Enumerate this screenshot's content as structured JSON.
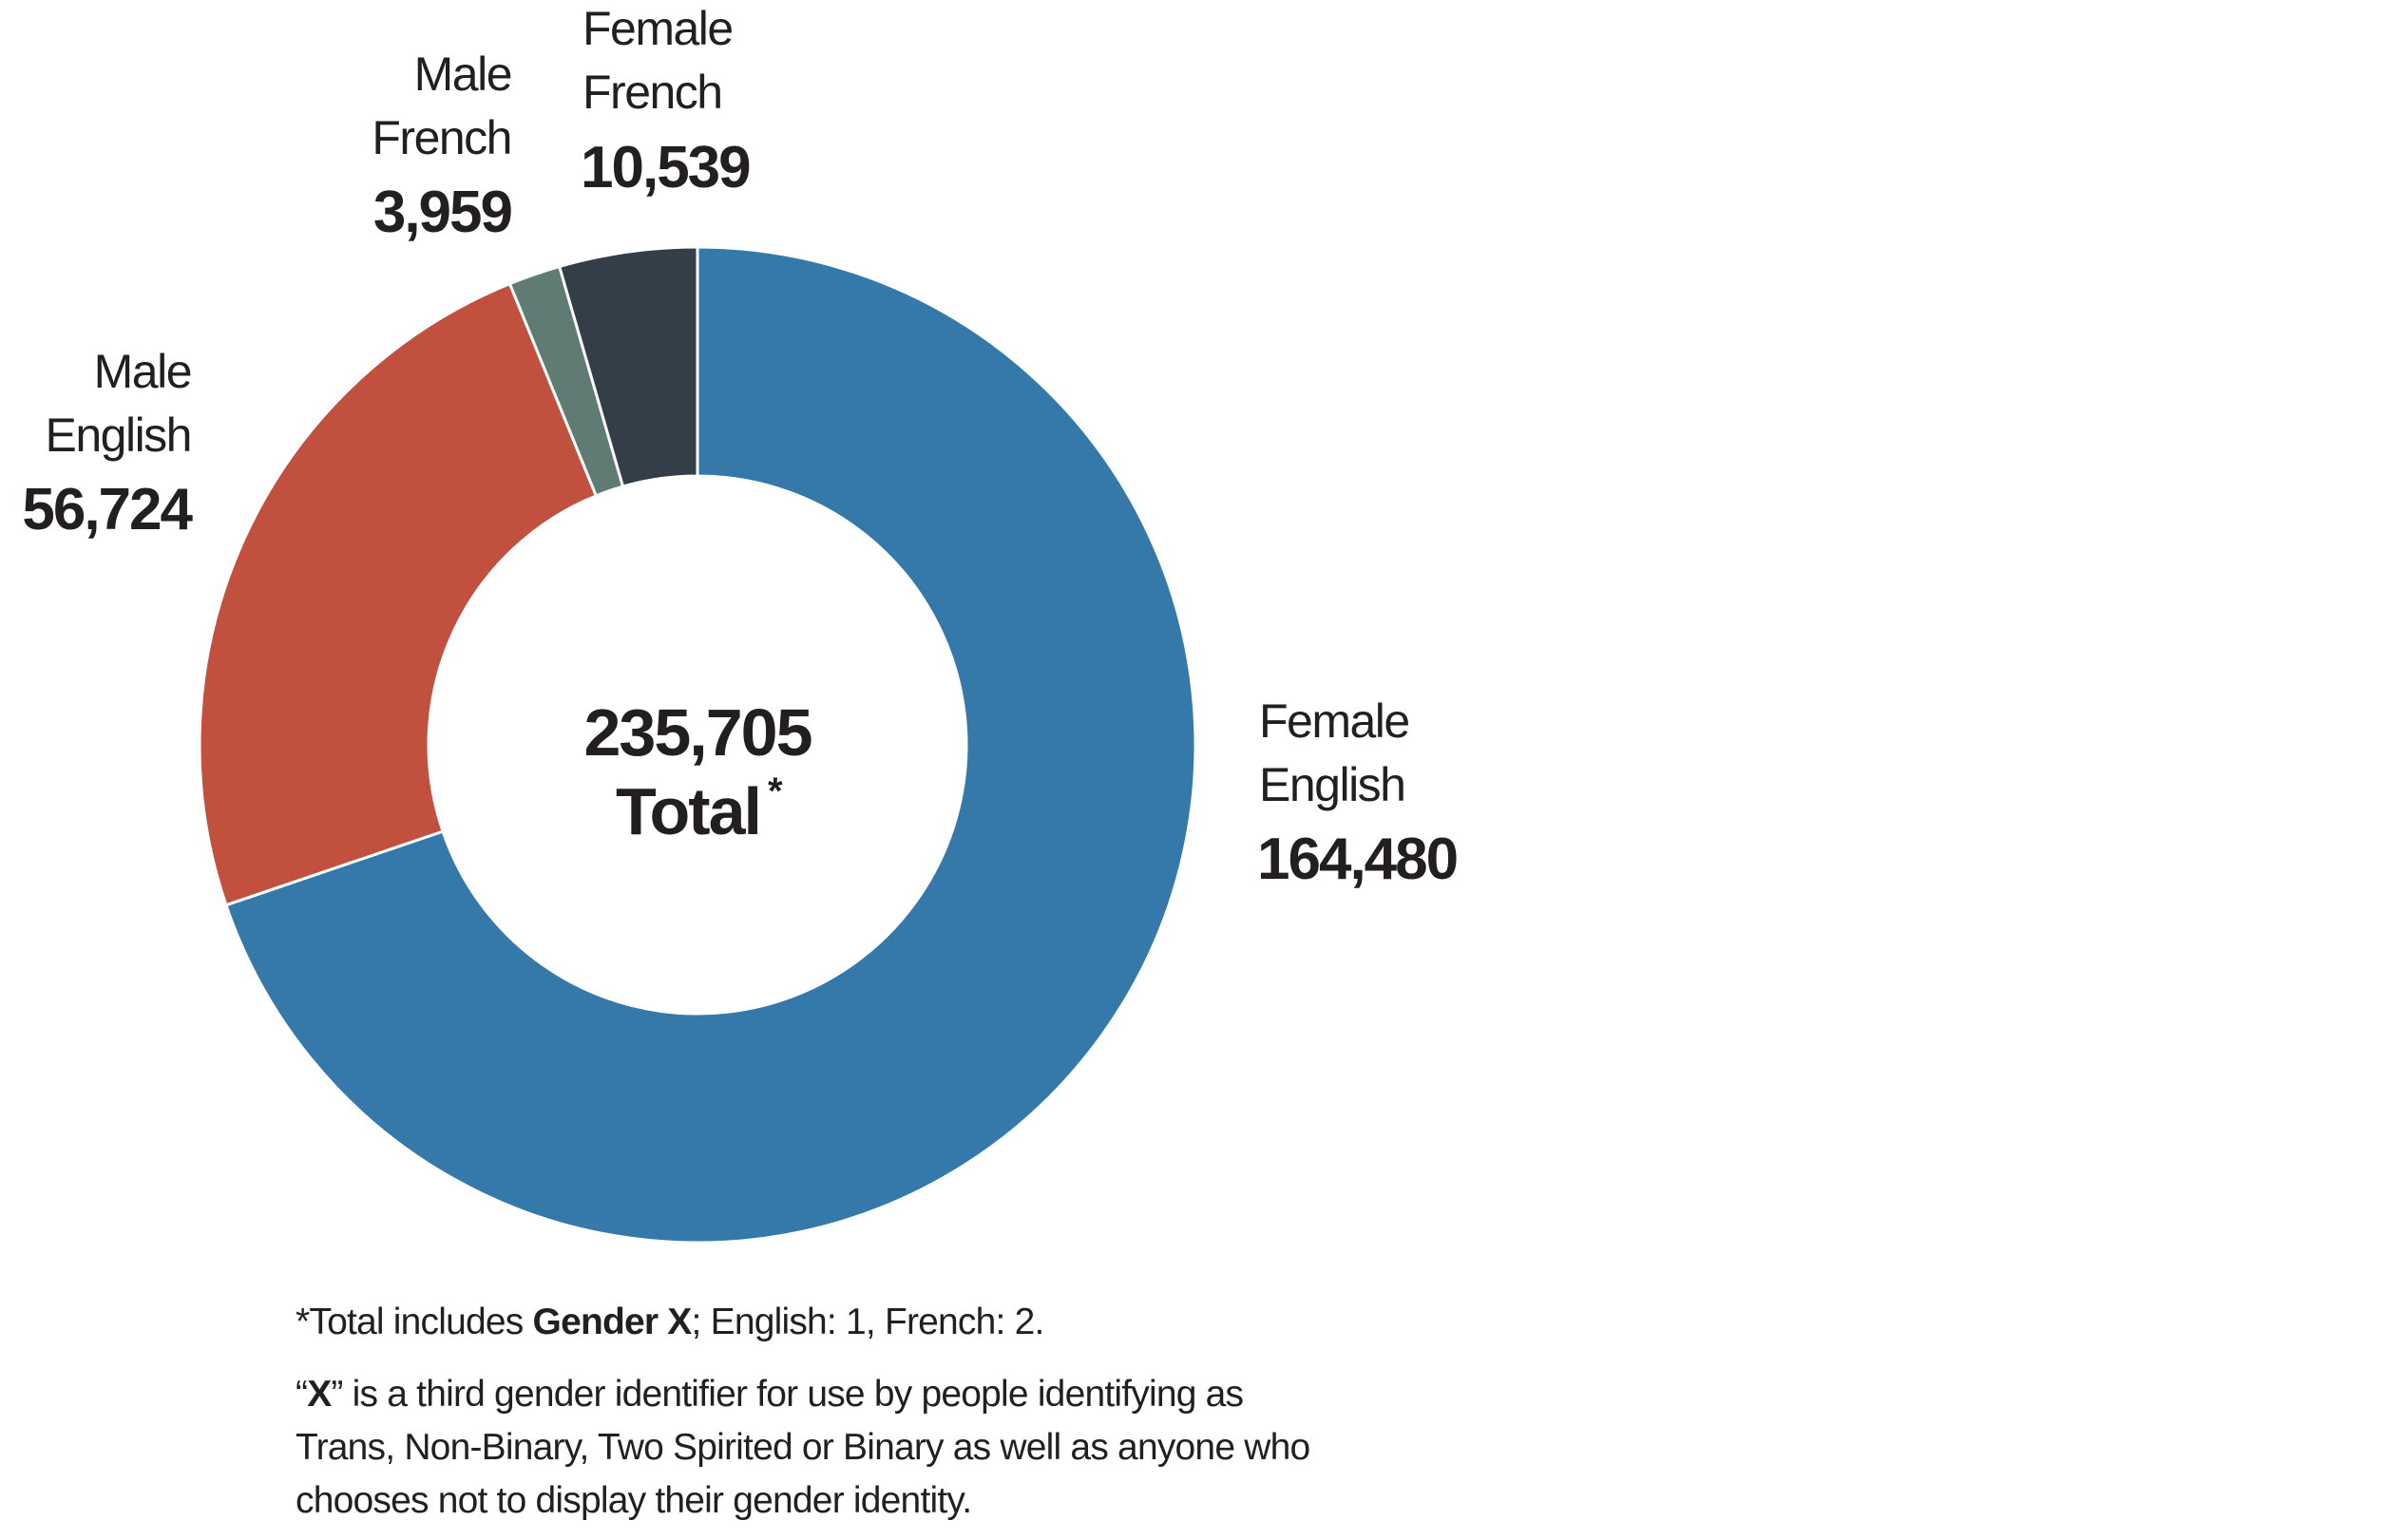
{
  "chart_data": {
    "type": "pie",
    "donut": true,
    "categories": [
      "Female English",
      "Male English",
      "Male French",
      "Female French"
    ],
    "values": [
      164480,
      56724,
      3959,
      10539
    ],
    "labels": [
      {
        "line1": "Female",
        "line2": "English",
        "value": "164,480"
      },
      {
        "line1": "Male",
        "line2": "English",
        "value": "56,724"
      },
      {
        "line1": "Male",
        "line2": "French",
        "value": "3,959"
      },
      {
        "line1": "Female",
        "line2": "French",
        "value": "10,539"
      }
    ],
    "colors": [
      "#3479a9",
      "#c2503f",
      "#5f7b73",
      "#343e48"
    ],
    "center": {
      "value": "235,705",
      "label": "Total",
      "marker": "*"
    },
    "start": "top",
    "direction": "clockwise"
  },
  "footnotes": {
    "note1_prefix": "*Total includes ",
    "note1_bold": "Gender X",
    "note1_suffix": "; English: 1, French: 2.",
    "note2_open": "“",
    "note2_bold": "X",
    "note2_rest": "” is a third gender identifier for use by people identifying as Trans, Non-Binary, Two Spirited or Binary as well as anyone who chooses not to display their gender identity."
  }
}
